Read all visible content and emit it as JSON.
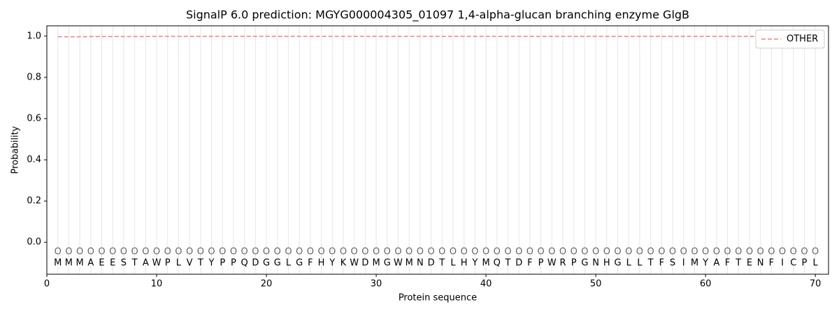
{
  "chart_data": {
    "type": "line",
    "title": "SignalP 6.0 prediction: MGYG000004305_01097 1,4-alpha-glucan branching enzyme GlgB",
    "x_label": "Protein sequence",
    "y_label": "Probability",
    "x": [
      1,
      2,
      3,
      4,
      5,
      6,
      7,
      8,
      9,
      10,
      11,
      12,
      13,
      14,
      15,
      16,
      17,
      18,
      19,
      20,
      21,
      22,
      23,
      24,
      25,
      26,
      27,
      28,
      29,
      30,
      31,
      32,
      33,
      34,
      35,
      36,
      37,
      38,
      39,
      40,
      41,
      42,
      43,
      44,
      45,
      46,
      47,
      48,
      49,
      50,
      51,
      52,
      53,
      54,
      55,
      56,
      57,
      58,
      59,
      60,
      61,
      62,
      63,
      64,
      65,
      66,
      67,
      68,
      69,
      70
    ],
    "residues": [
      "M",
      "M",
      "M",
      "A",
      "E",
      "E",
      "S",
      "T",
      "A",
      "W",
      "P",
      "L",
      "V",
      "T",
      "Y",
      "P",
      "P",
      "Q",
      "D",
      "G",
      "G",
      "L",
      "G",
      "F",
      "H",
      "Y",
      "K",
      "W",
      "D",
      "M",
      "G",
      "W",
      "M",
      "N",
      "D",
      "T",
      "L",
      "H",
      "Y",
      "M",
      "Q",
      "T",
      "D",
      "F",
      "P",
      "W",
      "R",
      "P",
      "G",
      "N",
      "H",
      "G",
      "L",
      "L",
      "T",
      "F",
      "S",
      "I",
      "M",
      "Y",
      "A",
      "F",
      "T",
      "E",
      "N",
      "F",
      "I",
      "C",
      "P",
      "L"
    ],
    "labels": [
      "O",
      "O",
      "O",
      "O",
      "O",
      "O",
      "O",
      "O",
      "O",
      "O",
      "O",
      "O",
      "O",
      "O",
      "O",
      "O",
      "O",
      "O",
      "O",
      "O",
      "O",
      "O",
      "O",
      "O",
      "O",
      "O",
      "O",
      "O",
      "O",
      "O",
      "O",
      "O",
      "O",
      "O",
      "O",
      "O",
      "O",
      "O",
      "O",
      "O",
      "O",
      "O",
      "O",
      "O",
      "O",
      "O",
      "O",
      "O",
      "O",
      "O",
      "O",
      "O",
      "O",
      "O",
      "O",
      "O",
      "O",
      "O",
      "O",
      "O",
      "O",
      "O",
      "O",
      "O",
      "O",
      "O",
      "O",
      "O",
      "O",
      "O"
    ],
    "series": [
      {
        "name": "OTHER",
        "color": "#f08080",
        "values": [
          0.997,
          0.997,
          0.997,
          0.998,
          0.998,
          0.998,
          0.998,
          0.998,
          0.998,
          0.999,
          0.999,
          0.999,
          0.999,
          0.999,
          0.999,
          0.999,
          0.999,
          0.999,
          0.999,
          0.999,
          0.999,
          0.999,
          0.999,
          0.999,
          0.999,
          0.999,
          0.999,
          0.999,
          0.999,
          0.999,
          0.999,
          0.999,
          0.999,
          0.999,
          0.999,
          0.999,
          0.999,
          0.999,
          0.999,
          0.999,
          0.999,
          0.999,
          0.999,
          0.999,
          0.999,
          0.999,
          0.999,
          0.999,
          0.999,
          0.999,
          0.999,
          0.999,
          0.999,
          0.999,
          0.999,
          0.999,
          0.999,
          0.999,
          0.999,
          0.999,
          0.999,
          0.999,
          0.999,
          0.999,
          0.999,
          0.999,
          0.999,
          0.999,
          0.999,
          0.999
        ]
      }
    ],
    "xlim": [
      0,
      71.2
    ],
    "ylim": [
      -0.155,
      1.05
    ],
    "xticks": [
      0,
      10,
      20,
      30,
      40,
      50,
      60,
      70
    ],
    "yticks": [
      {
        "value": 0,
        "label": "0.0"
      },
      {
        "value": 0.2,
        "label": "0.2"
      },
      {
        "value": 0.4,
        "label": "0.4"
      },
      {
        "value": 0.6,
        "label": "0.6"
      },
      {
        "value": 0.8,
        "label": "0.8"
      },
      {
        "value": 1,
        "label": "1.0"
      }
    ],
    "legend": "upper right"
  }
}
